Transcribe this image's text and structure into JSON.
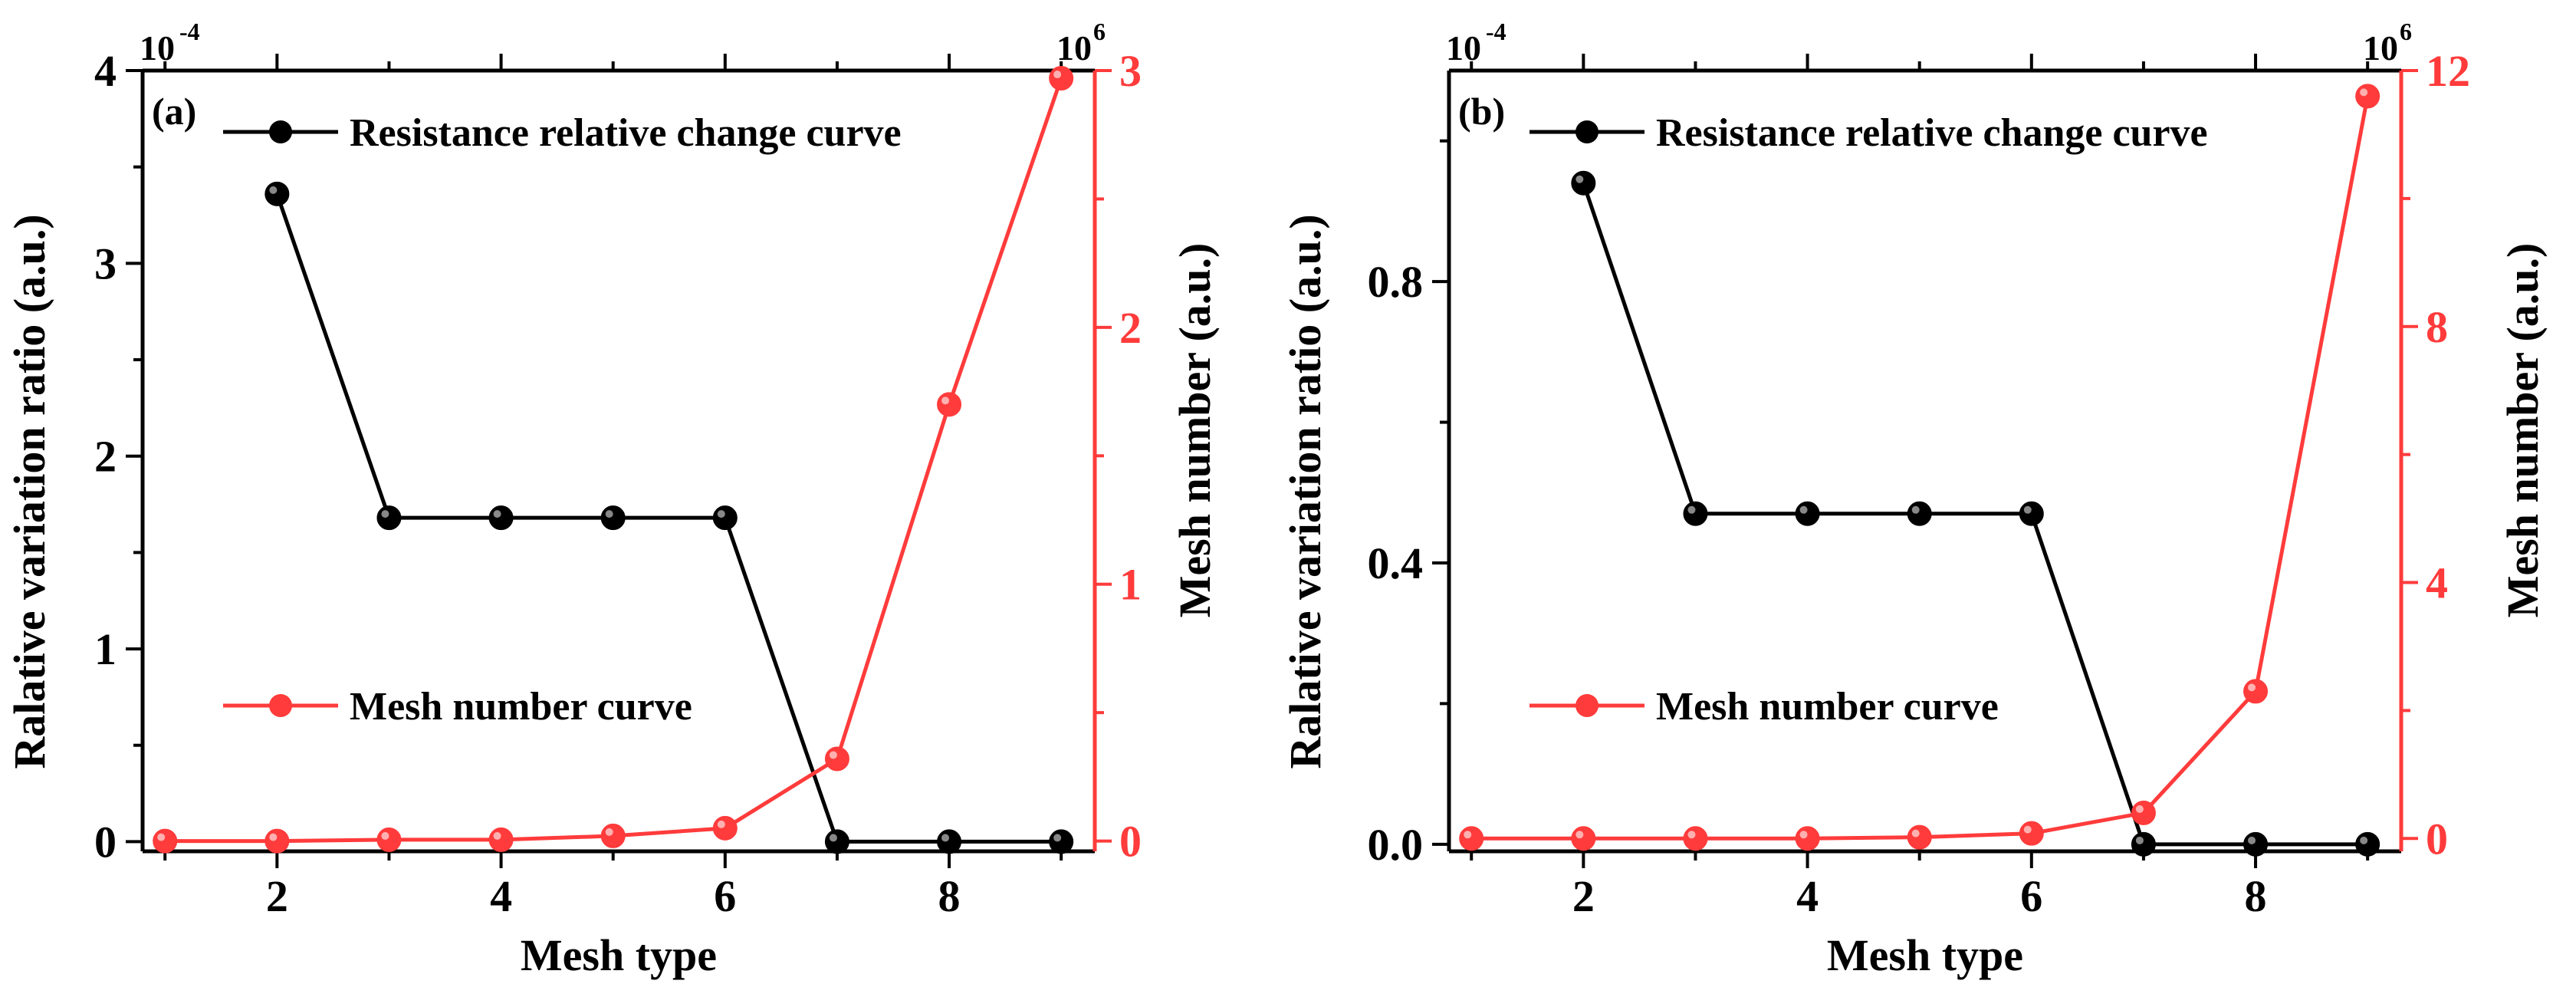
{
  "chart_data": [
    {
      "type": "line",
      "panel_label": "(a)",
      "xlabel": "Mesh type",
      "ylabel_left": "Ralative variation ratio (a.u.)",
      "ylabel_right": "Mesh number (a.u.)",
      "left_axis_multiplier": {
        "base": "10",
        "exponent": "-4"
      },
      "right_axis_multiplier": {
        "base": "10",
        "exponent": "6"
      },
      "xlim": [
        0.8,
        9.3
      ],
      "ylim_left": [
        -0.05,
        4.0
      ],
      "ylim_right": [
        -0.04,
        3.0
      ],
      "xticks": [
        2,
        4,
        6,
        8
      ],
      "yticks_left": [
        0,
        1,
        2,
        3,
        4
      ],
      "yticks_right": [
        0,
        1,
        2,
        3
      ],
      "series": [
        {
          "name": "Resistance relative change curve",
          "axis": "left",
          "color": "#000000",
          "x": [
            2,
            3,
            4,
            5,
            6,
            7,
            8,
            9
          ],
          "y": [
            3.36,
            1.68,
            1.68,
            1.68,
            1.68,
            0.0,
            0.0,
            0.0
          ]
        },
        {
          "name": "Mesh number curve",
          "axis": "right",
          "color": "#ff3b3b",
          "x": [
            1,
            2,
            3,
            4,
            5,
            6,
            7,
            8,
            9
          ],
          "y": [
            0.0,
            0.0,
            0.005,
            0.005,
            0.02,
            0.05,
            0.32,
            1.7,
            2.97
          ]
        }
      ],
      "legend_position": "top (black), lower-left (red)"
    },
    {
      "type": "line",
      "panel_label": "(b)",
      "xlabel": "Mesh type",
      "ylabel_left": "Ralative variation ratio (a.u.)",
      "ylabel_right": "Mesh number (a.u.)",
      "left_axis_multiplier": {
        "base": "10",
        "exponent": "-4"
      },
      "right_axis_multiplier": {
        "base": "10",
        "exponent": "6"
      },
      "xlim": [
        0.8,
        9.3
      ],
      "ylim_left": [
        -0.01,
        1.1
      ],
      "ylim_right": [
        -0.2,
        12.0
      ],
      "xticks": [
        2,
        4,
        6,
        8
      ],
      "yticks_left": [
        "0.0",
        "0.4",
        "0.8"
      ],
      "yticks_right": [
        0,
        4,
        8,
        12
      ],
      "series": [
        {
          "name": "Resistance relative change curve",
          "axis": "left",
          "color": "#000000",
          "x": [
            2,
            3,
            4,
            5,
            6,
            7,
            8,
            9
          ],
          "y": [
            0.94,
            0.47,
            0.47,
            0.47,
            0.47,
            0.0,
            0.0,
            0.0
          ]
        },
        {
          "name": "Mesh number curve",
          "axis": "right",
          "color": "#ff3b3b",
          "x": [
            1,
            2,
            3,
            4,
            5,
            6,
            7,
            8,
            9
          ],
          "y": [
            0.0,
            0.0,
            0.0,
            0.0,
            0.02,
            0.08,
            0.4,
            2.3,
            11.6
          ]
        }
      ],
      "legend_position": "top (black), lower-left (red)"
    }
  ]
}
